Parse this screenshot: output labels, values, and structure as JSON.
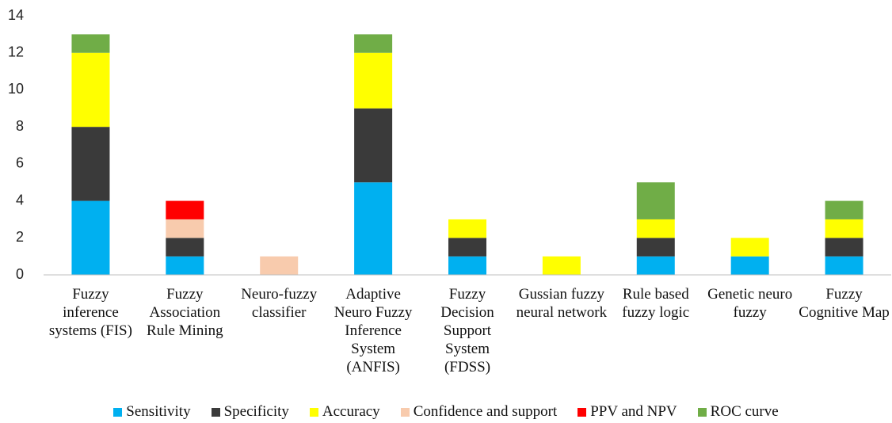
{
  "chart_data": {
    "type": "stacked_bar",
    "categories": [
      "Fuzzy inference systems (FIS)",
      "Fuzzy Association Rule Mining",
      "Neuro-fuzzy classifier",
      "Adaptive Neuro Fuzzy Inference System (ANFIS)",
      "Fuzzy Decision Support System (FDSS)",
      "Gussian fuzzy neural network",
      "Rule based fuzzy logic",
      "Genetic neuro fuzzy",
      "Fuzzy Cognitive Map"
    ],
    "series": [
      {
        "name": "Sensitivity",
        "color": "#00b0f0",
        "values": [
          4,
          1,
          0,
          5,
          1,
          0,
          1,
          1,
          1
        ]
      },
      {
        "name": "Specificity",
        "color": "#3a3a3a",
        "values": [
          4,
          1,
          0,
          4,
          1,
          0,
          1,
          0,
          1
        ]
      },
      {
        "name": "Accuracy",
        "color": "#ffff00",
        "values": [
          4,
          0,
          0,
          3,
          1,
          1,
          1,
          1,
          1
        ]
      },
      {
        "name": "Confidence and support",
        "color": "#f8cbad",
        "values": [
          0,
          1,
          1,
          0,
          0,
          0,
          0,
          0,
          0
        ]
      },
      {
        "name": "PPV and NPV",
        "color": "#ff0000",
        "values": [
          0,
          1,
          0,
          0,
          0,
          0,
          0,
          0,
          0
        ]
      },
      {
        "name": "ROC curve",
        "color": "#70ad47",
        "values": [
          1,
          0,
          0,
          1,
          0,
          0,
          2,
          0,
          1
        ]
      }
    ],
    "ylim": [
      0,
      14
    ],
    "yticks": [
      0,
      2,
      4,
      6,
      8,
      10,
      12,
      14
    ],
    "legend": "bottom"
  }
}
